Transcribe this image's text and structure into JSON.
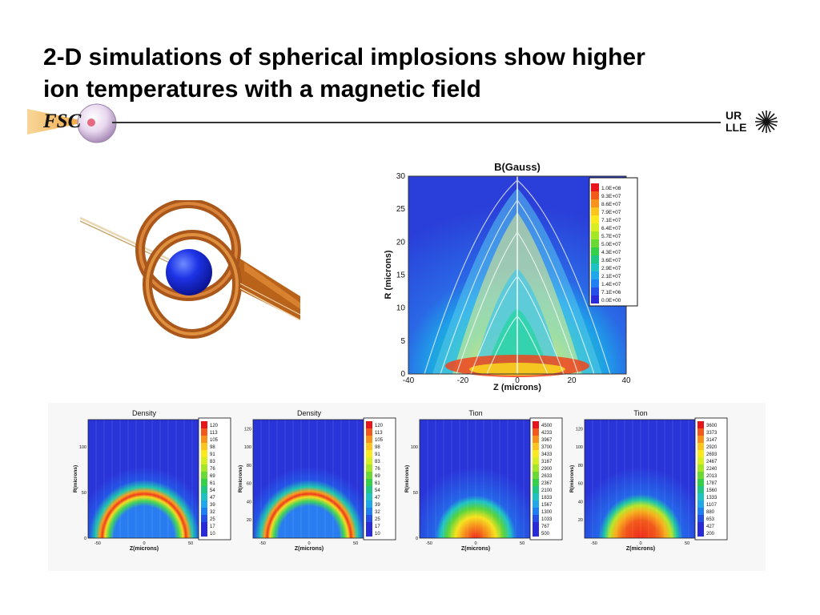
{
  "slide": {
    "title_line1": "2-D simulations of spherical implosions show higher",
    "title_line2": "ion temperatures with a magnetic field",
    "logo_left_text": "FSC",
    "logo_right_line1": "UR",
    "logo_right_line2": "LLE"
  },
  "chart_data": [
    {
      "type": "heatmap",
      "title": "B(Gauss)",
      "xlabel": "Z (microns)",
      "ylabel": "R (microns)",
      "xlim": [
        -40,
        40
      ],
      "ylim": [
        0,
        30
      ],
      "xticks": [
        "-40",
        "-20",
        "0",
        "20",
        "40"
      ],
      "yticks": [
        "0",
        "5",
        "10",
        "15",
        "20",
        "25",
        "30"
      ],
      "colorbar": [
        "1.0E+08",
        "9.3E+07",
        "8.6E+07",
        "7.9E+07",
        "7.1E+07",
        "6.4E+07",
        "5.7E+07",
        "5.0E+07",
        "4.3E+07",
        "3.6E+07",
        "2.9E+07",
        "2.1E+07",
        "1.4E+07",
        "7.1E+06",
        "0.0E+00"
      ],
      "colors": [
        "#e8141c",
        "#f25a1c",
        "#f7921d",
        "#fbc41e",
        "#fbe91f",
        "#d7ef22",
        "#a6e629",
        "#6bd935",
        "#36cf4a",
        "#1fc686",
        "#1fc1c2",
        "#1fa7e9",
        "#1f7ff2",
        "#2450e8",
        "#2a2bd8"
      ]
    },
    {
      "type": "heatmap",
      "title": "Density",
      "xlabel": "Z(microns)",
      "ylabel": "R(microns)",
      "xticks": [
        "-50",
        "0",
        "50"
      ],
      "yticks": [
        "0",
        "50",
        "100"
      ],
      "colorbar": [
        "120",
        "113",
        "105",
        "98",
        "91",
        "83",
        "76",
        "69",
        "61",
        "54",
        "47",
        "39",
        "32",
        "25",
        "17",
        "10"
      ]
    },
    {
      "type": "heatmap",
      "title": "Density",
      "xlabel": "Z(microns)",
      "ylabel": "R(microns)",
      "xticks": [
        "-50",
        "0",
        "50"
      ],
      "yticks": [
        "20",
        "40",
        "60",
        "80",
        "100",
        "120"
      ],
      "colorbar": [
        "120",
        "113",
        "105",
        "98",
        "91",
        "83",
        "76",
        "69",
        "61",
        "54",
        "47",
        "39",
        "32",
        "25",
        "17",
        "10"
      ]
    },
    {
      "type": "heatmap",
      "title": "Tion",
      "xlabel": "Z(microns)",
      "ylabel": "R(microns)",
      "xticks": [
        "-50",
        "0",
        "50"
      ],
      "yticks": [
        "0",
        "50",
        "100"
      ],
      "colorbar": [
        "4500",
        "4233",
        "3967",
        "3700",
        "3433",
        "3167",
        "2900",
        "2633",
        "2367",
        "2100",
        "1833",
        "1567",
        "1300",
        "1033",
        "767",
        "500"
      ]
    },
    {
      "type": "heatmap",
      "title": "Tion",
      "xlabel": "Z(microns)",
      "ylabel": "R(microns)",
      "xticks": [
        "-50",
        "0",
        "50"
      ],
      "yticks": [
        "20",
        "40",
        "60",
        "80",
        "100",
        "120"
      ],
      "colorbar": [
        "3600",
        "3373",
        "3147",
        "2920",
        "2693",
        "2467",
        "2240",
        "2013",
        "1787",
        "1560",
        "1333",
        "1107",
        "880",
        "653",
        "427",
        "200"
      ]
    }
  ]
}
